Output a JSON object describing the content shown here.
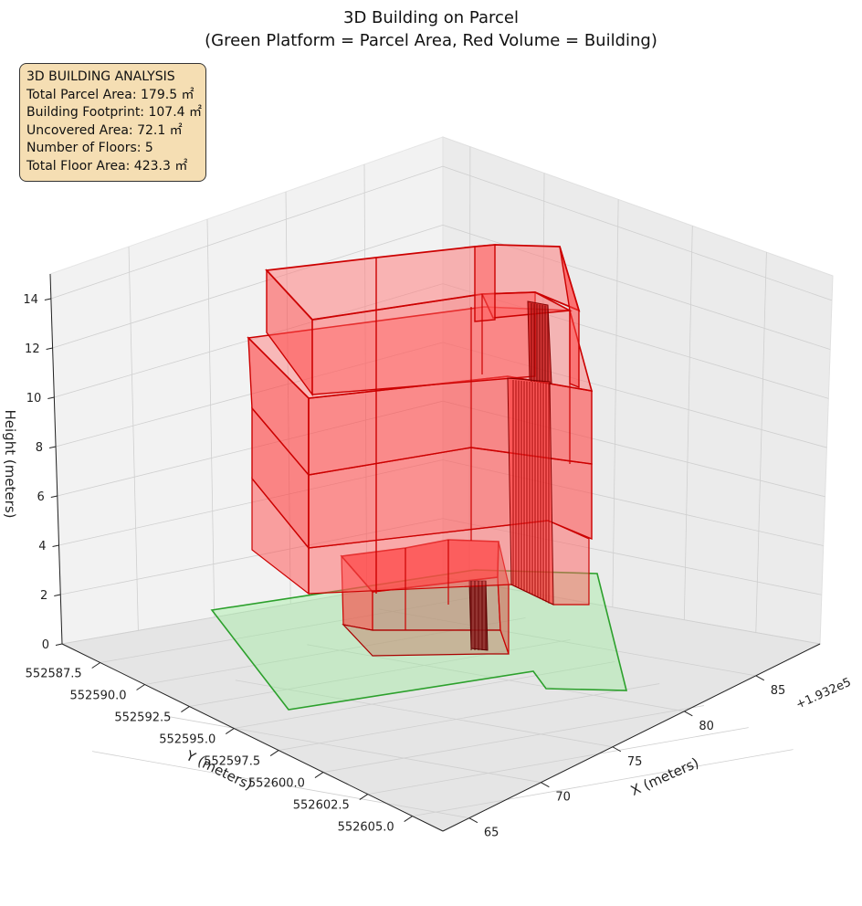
{
  "chart_data": {
    "type": "3d-polygons",
    "title": "3D Building on Parcel",
    "subtitle": "(Green Platform = Parcel Area, Red Volume = Building)",
    "xlabel": "X (meters)",
    "ylabel": "Y (meters)",
    "zlabel": "Height (meters)",
    "x_offset_label": "+1.932e5",
    "x_ticks": [
      "65",
      "70",
      "75",
      "80",
      "85"
    ],
    "y_ticks": [
      "552587.5",
      "552590.0",
      "552592.5",
      "552595.0",
      "552597.5",
      "552600.0",
      "552602.5",
      "552605.0"
    ],
    "z_ticks": [
      "0",
      "2",
      "4",
      "6",
      "8",
      "10",
      "12",
      "14"
    ],
    "zlim": [
      0,
      15
    ],
    "parcel_color": "#2ca02c",
    "parcel_fill": "#90ee90",
    "building_color": "#ff0000",
    "info": {
      "heading": "3D BUILDING ANALYSIS",
      "lines": [
        "Total Parcel Area: 179.5 ㎡",
        "Building Footprint: 107.4 ㎡",
        "Uncovered Area: 72.1 ㎡",
        "Number of Floors: 5",
        "Total Floor Area: 423.3 ㎡"
      ]
    }
  }
}
